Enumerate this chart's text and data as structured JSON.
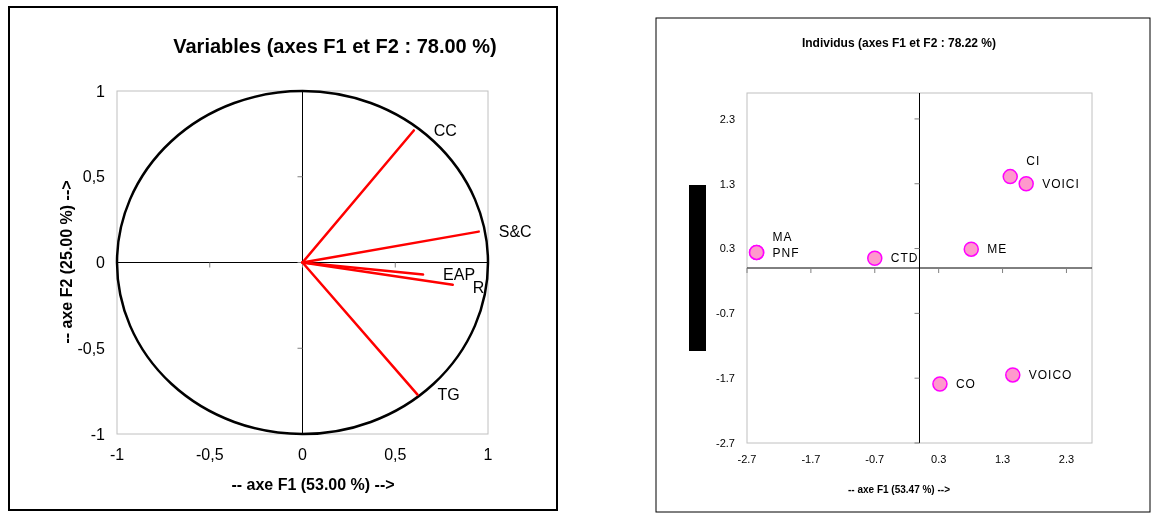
{
  "chart_data": [
    {
      "type": "line",
      "title": "Variables (axes F1 et F2 : 78.00 %)",
      "xlabel": "-- axe F1 (53.00 %) -->",
      "ylabel": "-- axe F2 (25.00 %) -->",
      "xlim": [
        -1,
        1
      ],
      "ylim": [
        -1,
        1
      ],
      "xticks": [
        -1,
        {
          "value": -0.5,
          "label": "-0,5"
        },
        0,
        {
          "value": 0.5,
          "label": "0,5"
        },
        1
      ],
      "yticks": [
        -1,
        {
          "value": -0.5,
          "label": "-0,5"
        },
        0,
        {
          "value": 0.5,
          "label": "0,5"
        },
        1
      ],
      "marker": "none",
      "line_style": "solid",
      "series": [
        {
          "name": "CC",
          "color": "#ff0000",
          "x": [
            0,
            0.6
          ],
          "values": [
            0,
            0.77
          ]
        },
        {
          "name": "S&C",
          "color": "#ff0000",
          "x": [
            0,
            0.95
          ],
          "values": [
            0,
            0.18
          ]
        },
        {
          "name": "EAP",
          "color": "#ff0000",
          "x": [
            0,
            0.65
          ],
          "values": [
            0,
            -0.07
          ]
        },
        {
          "name": "R",
          "color": "#ff0000",
          "x": [
            0,
            0.81
          ],
          "values": [
            0,
            -0.13
          ]
        },
        {
          "name": "TG",
          "color": "#ff0000",
          "x": [
            0,
            0.62
          ],
          "values": [
            0,
            -0.77
          ]
        }
      ]
    },
    {
      "type": "scatter",
      "title": "Individus (axes F1 et F2 : 78.22 %)",
      "xlabel": "-- axe F1 (53.47 %) -->",
      "xlim": [
        -2.7,
        2.7
      ],
      "ylim": [
        -2.7,
        2.7
      ],
      "xticks": [
        -2.7,
        -1.7,
        -0.7,
        0.3,
        1.3,
        2.3
      ],
      "yticks": [
        -2.7,
        -1.7,
        -0.7,
        0.3,
        1.3,
        2.3
      ],
      "marker": "circle",
      "color": "#ff99cc",
      "x": [
        -2.55,
        -2.55,
        -0.7,
        0.81,
        1.42,
        1.67,
        0.32,
        1.46
      ],
      "values": [
        0.24,
        0.24,
        0.15,
        0.29,
        1.41,
        1.3,
        -1.79,
        -1.65
      ],
      "annotations": [
        {
          "text": "PNF",
          "x": -2.55,
          "y": 0.24
        },
        {
          "text": "MA",
          "x": -2.55,
          "y": 0.24
        },
        {
          "text": "CTD",
          "x": -0.7,
          "y": 0.15
        },
        {
          "text": "ME",
          "x": 0.81,
          "y": 0.29
        },
        {
          "text": "CI",
          "x": 1.42,
          "y": 1.41
        },
        {
          "text": "VOICI",
          "x": 1.67,
          "y": 1.3
        },
        {
          "text": "CO",
          "x": 0.32,
          "y": -1.79
        },
        {
          "text": "VOICO",
          "x": 1.46,
          "y": -1.65
        }
      ]
    }
  ]
}
